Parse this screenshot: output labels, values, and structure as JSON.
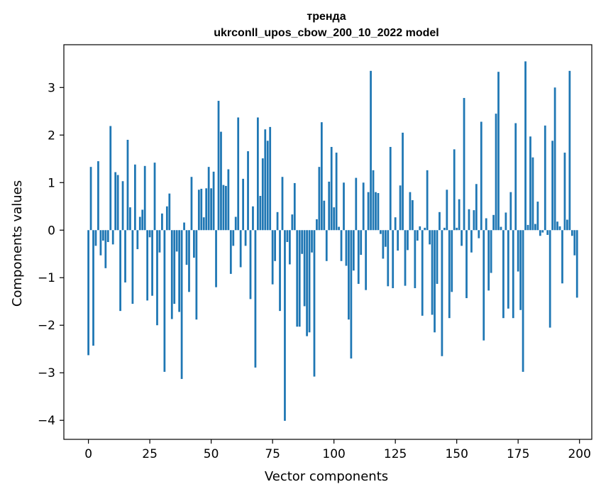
{
  "chart_data": {
    "type": "bar",
    "title": "тренда",
    "subtitle": "ukrconll_upos_cbow_200_10_2022 model",
    "xlabel": "Vector components",
    "ylabel": "Components values",
    "xlim": [
      -10,
      205
    ],
    "ylim": [
      -4.4,
      3.9
    ],
    "xticks": [
      0,
      25,
      50,
      75,
      100,
      125,
      150,
      175,
      200
    ],
    "yticks": [
      -4,
      -3,
      -2,
      -1,
      0,
      1,
      2,
      3
    ],
    "ytick_labels": [
      "−4",
      "−3",
      "−2",
      "−1",
      "0",
      "1",
      "2",
      "3"
    ],
    "grid": false,
    "bar_color": "#1f77b4",
    "x": [
      0,
      1,
      2,
      3,
      4,
      5,
      6,
      7,
      8,
      9,
      10,
      11,
      12,
      13,
      14,
      15,
      16,
      17,
      18,
      19,
      20,
      21,
      22,
      23,
      24,
      25,
      26,
      27,
      28,
      29,
      30,
      31,
      32,
      33,
      34,
      35,
      36,
      37,
      38,
      39,
      40,
      41,
      42,
      43,
      44,
      45,
      46,
      47,
      48,
      49,
      50,
      51,
      52,
      53,
      54,
      55,
      56,
      57,
      58,
      59,
      60,
      61,
      62,
      63,
      64,
      65,
      66,
      67,
      68,
      69,
      70,
      71,
      72,
      73,
      74,
      75,
      76,
      77,
      78,
      79,
      80,
      81,
      82,
      83,
      84,
      85,
      86,
      87,
      88,
      89,
      90,
      91,
      92,
      93,
      94,
      95,
      96,
      97,
      98,
      99,
      100,
      101,
      102,
      103,
      104,
      105,
      106,
      107,
      108,
      109,
      110,
      111,
      112,
      113,
      114,
      115,
      116,
      117,
      118,
      119,
      120,
      121,
      122,
      123,
      124,
      125,
      126,
      127,
      128,
      129,
      130,
      131,
      132,
      133,
      134,
      135,
      136,
      137,
      138,
      139,
      140,
      141,
      142,
      143,
      144,
      145,
      146,
      147,
      148,
      149,
      150,
      151,
      152,
      153,
      154,
      155,
      156,
      157,
      158,
      159,
      160,
      161,
      162,
      163,
      164,
      165,
      166,
      167,
      168,
      169,
      170,
      171,
      172,
      173,
      174,
      175,
      176,
      177,
      178,
      179,
      180,
      181,
      182,
      183,
      184,
      185,
      186,
      187,
      188,
      189,
      190,
      191,
      192,
      193,
      194,
      195,
      196,
      197,
      198,
      199
    ],
    "values": [
      -2.63,
      1.33,
      -2.43,
      -0.33,
      1.45,
      -0.53,
      -0.22,
      -0.8,
      -0.25,
      2.19,
      -0.3,
      1.22,
      1.16,
      -1.7,
      1.03,
      -1.1,
      1.9,
      0.48,
      -1.55,
      1.38,
      -0.4,
      0.28,
      0.43,
      1.35,
      -1.48,
      -0.15,
      -1.38,
      1.42,
      -2.0,
      -0.47,
      0.35,
      -2.98,
      0.5,
      0.77,
      -1.87,
      -1.55,
      -0.45,
      -1.72,
      -3.13,
      0.16,
      -0.73,
      -1.3,
      1.12,
      -0.58,
      -1.88,
      0.85,
      0.87,
      0.27,
      0.88,
      1.33,
      0.88,
      1.23,
      -1.2,
      2.72,
      2.07,
      0.95,
      0.93,
      1.28,
      -0.92,
      -0.33,
      0.28,
      2.37,
      -0.78,
      1.08,
      -0.33,
      1.66,
      -1.45,
      0.5,
      -2.89,
      2.37,
      0.72,
      1.51,
      2.12,
      1.88,
      2.17,
      -1.14,
      -0.65,
      0.38,
      -1.7,
      1.12,
      -4.01,
      -0.25,
      -0.72,
      0.33,
      0.99,
      -2.03,
      -2.03,
      -0.5,
      -1.6,
      -2.23,
      -2.15,
      -0.47,
      -3.08,
      0.23,
      1.33,
      2.27,
      0.62,
      -0.65,
      1.02,
      1.75,
      0.48,
      1.63,
      0.07,
      -0.65,
      1.0,
      -0.75,
      -1.88,
      -2.7,
      -0.85,
      1.1,
      -1.13,
      -0.52,
      1.0,
      -1.26,
      0.8,
      3.35,
      1.26,
      0.8,
      0.78,
      -0.08,
      -0.6,
      -0.35,
      -1.18,
      1.75,
      -1.22,
      0.27,
      -0.43,
      0.94,
      2.05,
      -1.17,
      -0.42,
      0.8,
      0.63,
      -1.22,
      -0.22,
      0.08,
      -1.8,
      0.05,
      1.26,
      -0.3,
      -1.78,
      -2.15,
      -1.13,
      0.38,
      -2.65,
      0.05,
      0.85,
      -1.85,
      -1.3,
      1.7,
      0.05,
      0.65,
      -0.33,
      2.78,
      -1.43,
      0.44,
      -0.47,
      0.42,
      0.97,
      -0.17,
      2.28,
      -2.32,
      0.25,
      -1.27,
      -0.9,
      0.32,
      2.45,
      3.33,
      0.07,
      -1.85,
      0.37,
      -1.65,
      0.8,
      -1.85,
      2.25,
      -0.87,
      -1.68,
      -2.98,
      3.55,
      0.11,
      1.97,
      1.53,
      0.13,
      0.6,
      -0.12,
      -0.05,
      2.2,
      -0.1,
      -2.05,
      1.88,
      3.0,
      0.18,
      0.08,
      -1.12,
      1.63,
      0.22,
      3.35,
      -0.12,
      -0.53,
      -1.42
    ]
  }
}
